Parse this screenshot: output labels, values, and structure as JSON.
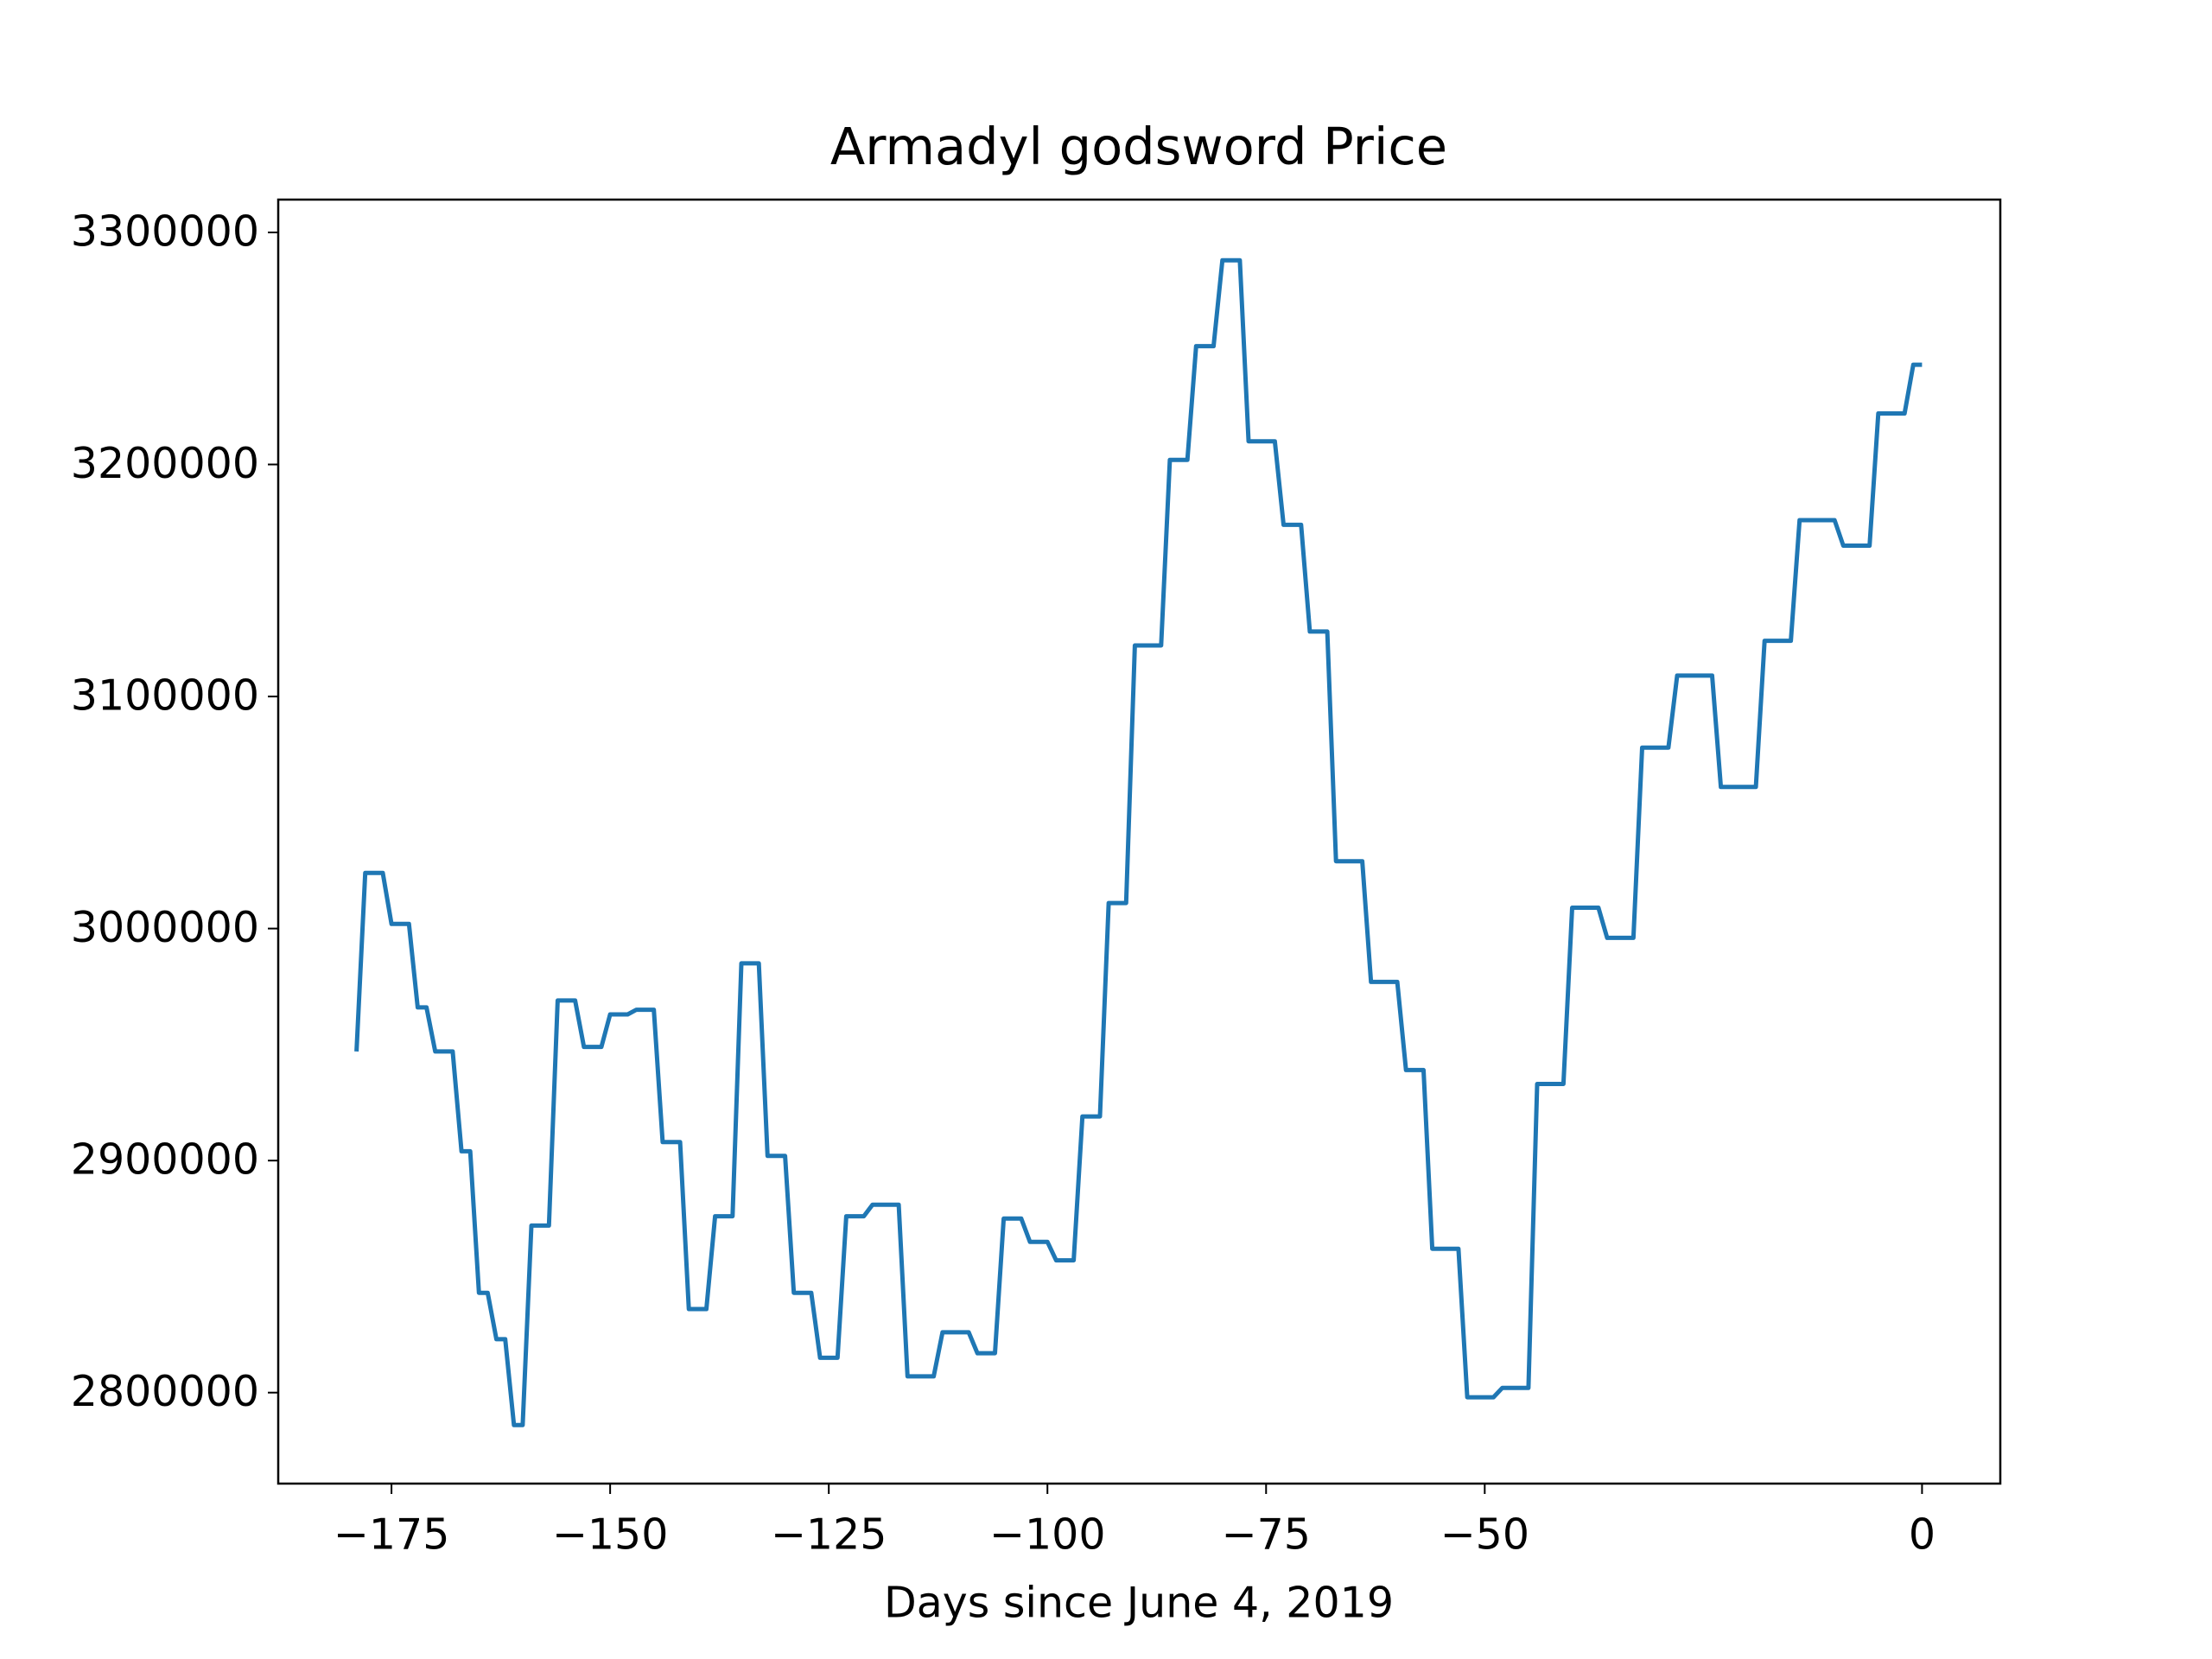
{
  "chart_data": {
    "type": "line",
    "title": "Armadyl godsword Price",
    "xlabel": "Days since June 4, 2019",
    "series": [
      {
        "color": "#1f77b4",
        "x": [
          -179,
          -178,
          -176,
          -175,
          -173,
          -172,
          -171,
          -170,
          -168,
          -167,
          -166,
          -165,
          -164,
          -163,
          -162,
          -161,
          -160,
          -159,
          -157,
          -156,
          -154,
          -153,
          -151,
          -150,
          -148,
          -147,
          -145,
          -144,
          -142,
          -141,
          -139,
          -138,
          -136,
          -135,
          -133,
          -132,
          -130,
          -129,
          -127,
          -126,
          -124,
          -123,
          -121,
          -120,
          -117,
          -116,
          -113,
          -112,
          -109,
          -108,
          -106,
          -105,
          -103,
          -102,
          -100,
          -99,
          -97,
          -96,
          -94,
          -93,
          -91,
          -90,
          -87,
          -86,
          -84,
          -83,
          -81,
          -80,
          -78,
          -77,
          -74,
          -73,
          -71,
          -70,
          -68,
          -67,
          -64,
          -63,
          -60,
          -59,
          -57,
          -56,
          -53,
          -52,
          -49,
          -48,
          -45,
          -44,
          -41,
          -40,
          -37,
          -36,
          -33,
          -32,
          -29,
          -28,
          -24,
          -23,
          -19,
          -18,
          -15,
          -14,
          -10,
          -9,
          -6,
          -5,
          -2,
          -1,
          0
        ],
        "values": [
          2947000,
          3024000,
          3024000,
          3002000,
          3002000,
          2966000,
          2966000,
          2947000,
          2947000,
          2904000,
          2904000,
          2843000,
          2843000,
          2823000,
          2823000,
          2786000,
          2786000,
          2872000,
          2872000,
          2969000,
          2969000,
          2949000,
          2949000,
          2963000,
          2963000,
          2965000,
          2965000,
          2908000,
          2908000,
          2836000,
          2836000,
          2876000,
          2876000,
          2985000,
          2985000,
          2902000,
          2902000,
          2843000,
          2843000,
          2815000,
          2815000,
          2876000,
          2876000,
          2881000,
          2881000,
          2807000,
          2807000,
          2826000,
          2826000,
          2817000,
          2817000,
          2875000,
          2875000,
          2865000,
          2865000,
          2857000,
          2857000,
          2919000,
          2919000,
          3011000,
          3011000,
          3122000,
          3122000,
          3202000,
          3202000,
          3251000,
          3251000,
          3288000,
          3288000,
          3210000,
          3210000,
          3174000,
          3174000,
          3128000,
          3128000,
          3029000,
          3029000,
          2977000,
          2977000,
          2939000,
          2939000,
          2862000,
          2862000,
          2798000,
          2798000,
          2802000,
          2802000,
          2933000,
          2933000,
          3009000,
          3009000,
          2996000,
          2996000,
          3078000,
          3078000,
          3109000,
          3109000,
          3061000,
          3061000,
          3124000,
          3124000,
          3176000,
          3176000,
          3165000,
          3165000,
          3222000,
          3222000,
          3243000,
          3243000
        ]
      }
    ],
    "xlim": [
      -187.95,
      8.95
    ],
    "ylim": [
      2760790,
      3314150
    ],
    "xticks": [
      {
        "value": -175,
        "label": "−175"
      },
      {
        "value": -150,
        "label": "−150"
      },
      {
        "value": -125,
        "label": "−125"
      },
      {
        "value": -100,
        "label": "−100"
      },
      {
        "value": -75,
        "label": "−75"
      },
      {
        "value": -50,
        "label": "−50"
      },
      0
    ],
    "yticks": [
      2800000,
      2900000,
      3000000,
      3100000,
      3200000,
      3300000
    ],
    "grid": false
  }
}
